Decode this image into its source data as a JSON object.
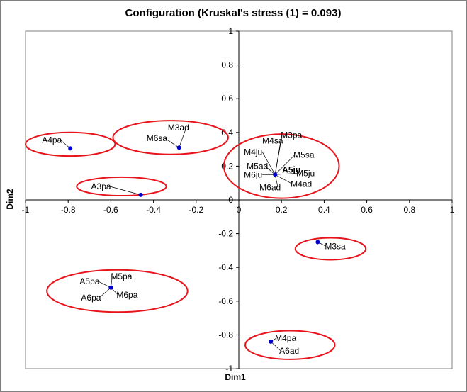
{
  "chart_data": {
    "type": "scatter",
    "title": "Configuration (Kruskal's stress (1) = 0.093)",
    "xlabel": "Dim1",
    "ylabel": "Dim2",
    "xlim": [
      -1,
      1
    ],
    "ylim": [
      -1,
      1
    ],
    "xticks": [
      "-1",
      "-0.8",
      "-0.6",
      "-0.4",
      "-0.2",
      "0",
      "0.2",
      "0.4",
      "0.6",
      "0.8",
      "1"
    ],
    "yticks": [
      "1",
      "0.8",
      "0.6",
      "0.4",
      "0.2",
      "0",
      "-0.2",
      "-0.4",
      "-0.6",
      "-0.8",
      "-1"
    ],
    "grid": false,
    "point_color": "#0000cc",
    "ellipse_color": "#e8141c",
    "points": [
      {
        "label": "A4pa",
        "x": -0.79,
        "y": 0.305
      },
      {
        "label": "M3ad",
        "x": -0.28,
        "y": 0.31
      },
      {
        "label": "M6sa",
        "x": -0.28,
        "y": 0.31
      },
      {
        "label": "A3pa",
        "x": -0.46,
        "y": 0.03
      },
      {
        "label": "M4sa",
        "x": 0.17,
        "y": 0.15
      },
      {
        "label": "M3pa",
        "x": 0.17,
        "y": 0.15
      },
      {
        "label": "M4ju",
        "x": 0.17,
        "y": 0.15
      },
      {
        "label": "M5sa",
        "x": 0.17,
        "y": 0.15
      },
      {
        "label": "M5ad",
        "x": 0.17,
        "y": 0.15
      },
      {
        "label": "M6ju",
        "x": 0.17,
        "y": 0.15
      },
      {
        "label": "M5ju",
        "x": 0.17,
        "y": 0.15
      },
      {
        "label": "M6ad",
        "x": 0.17,
        "y": 0.15
      },
      {
        "label": "M4ad",
        "x": 0.17,
        "y": 0.15
      },
      {
        "label": "M3sa",
        "x": 0.37,
        "y": -0.25
      },
      {
        "label": "A5pa",
        "x": -0.6,
        "y": -0.52
      },
      {
        "label": "M5pa",
        "x": -0.6,
        "y": -0.52
      },
      {
        "label": "A6pa",
        "x": -0.6,
        "y": -0.52
      },
      {
        "label": "M6pa",
        "x": -0.6,
        "y": -0.52
      },
      {
        "label": "M4pa",
        "x": 0.15,
        "y": -0.84
      },
      {
        "label": "A6ad",
        "x": 0.15,
        "y": -0.84
      }
    ],
    "overlap_cluster_text": "A5ju"
  }
}
